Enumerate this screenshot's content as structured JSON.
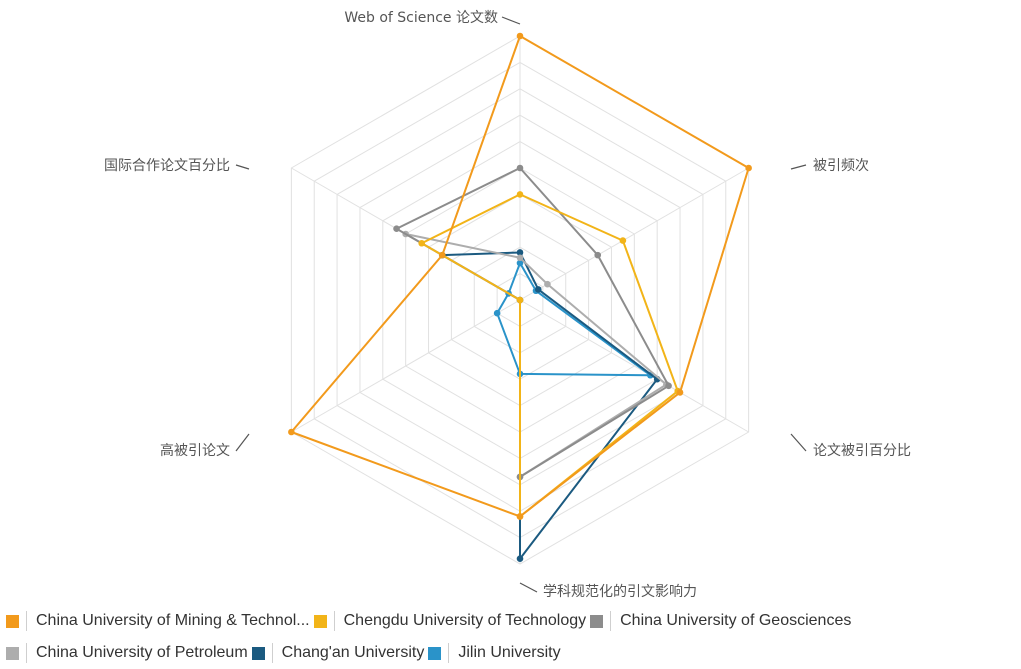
{
  "chart_data": {
    "type": "radar",
    "axes": [
      "Web of Science 论文数",
      "被引频次",
      "论文被引百分比",
      "学科规范化的引文影响力",
      "高被引论文",
      "国际合作论文百分比"
    ],
    "rmax": 10,
    "rings": 10,
    "grid": true,
    "legend_position": "bottom",
    "series": [
      {
        "name": "China University of Mining & Technol...",
        "color": "#F29A1C",
        "values": [
          10.0,
          10.0,
          7.0,
          8.2,
          10.0,
          3.4
        ]
      },
      {
        "name": "Chengdu University of Technology",
        "color": "#F2B418",
        "values": [
          4.0,
          4.5,
          6.9,
          8.2,
          0.0,
          4.3
        ]
      },
      {
        "name": "China University of Geosciences",
        "color": "#8C8C8C",
        "values": [
          5.0,
          3.4,
          6.5,
          6.7,
          0.0,
          5.4
        ]
      },
      {
        "name": "China University of Petroleum",
        "color": "#ADADAD",
        "values": [
          1.6,
          1.2,
          6.4,
          6.7,
          0.0,
          5.0
        ]
      },
      {
        "name": "Chang'an University",
        "color": "#1B5A80",
        "values": [
          1.8,
          0.8,
          6.0,
          9.8,
          0.0,
          3.4
        ]
      },
      {
        "name": "Jilin University",
        "color": "#2A93C9",
        "values": [
          1.4,
          0.7,
          5.7,
          2.8,
          1.0,
          0.5
        ]
      }
    ]
  }
}
